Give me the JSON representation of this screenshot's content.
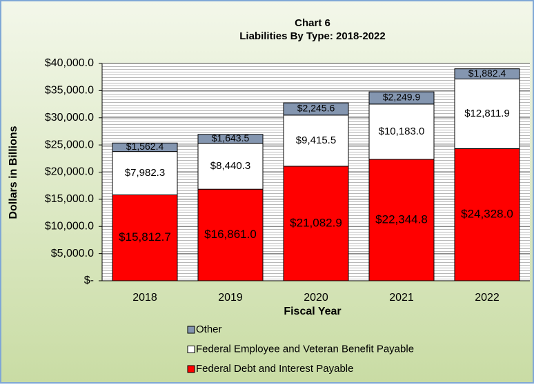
{
  "chart_data": {
    "type": "stacked_bar",
    "title": "Chart 6",
    "subtitle": "Liabilities By Type: 2018-2022",
    "x_label": "Fiscal Year",
    "y_label": "Dollars in Billions",
    "categories": [
      "2018",
      "2019",
      "2020",
      "2021",
      "2022"
    ],
    "series": [
      {
        "name": "Federal Debt and Interest Payable",
        "color": "#ff0000",
        "values": [
          15812.7,
          16861.0,
          21082.9,
          22344.8,
          24328.0
        ],
        "value_labels": [
          "$15,812.7",
          "$16,861.0",
          "$21,082.9",
          "$22,344.8",
          "$24,328.0"
        ]
      },
      {
        "name": "Federal Employee and Veteran Benefit Payable",
        "color": "#ffffff",
        "values": [
          7982.3,
          8440.3,
          9415.5,
          10183.0,
          12811.9
        ],
        "value_labels": [
          "$7,982.3",
          "$8,440.3",
          "$9,415.5",
          "$10,183.0",
          "$12,811.9"
        ]
      },
      {
        "name": "Other",
        "color": "#8496b0",
        "values": [
          1562.4,
          1643.5,
          2245.6,
          2249.9,
          1882.4
        ],
        "value_labels": [
          "$1,562.4",
          "$1,643.5",
          "$2,245.6",
          "$2,249.9",
          "$1,882.4"
        ]
      }
    ],
    "ylim": [
      0,
      40000
    ],
    "yticks": [
      {
        "value": 0,
        "label": "$-"
      },
      {
        "value": 5000,
        "label": "$5,000.0"
      },
      {
        "value": 10000,
        "label": "$10,000.0"
      },
      {
        "value": 15000,
        "label": "$15,000.0"
      },
      {
        "value": 20000,
        "label": "$20,000.0"
      },
      {
        "value": 25000,
        "label": "$25,000.0"
      },
      {
        "value": 30000,
        "label": "$30,000.0"
      },
      {
        "value": 35000,
        "label": "$35,000.0"
      },
      {
        "value": 40000,
        "label": "$40,000.0"
      }
    ],
    "grid": true,
    "legend": "bottom"
  }
}
